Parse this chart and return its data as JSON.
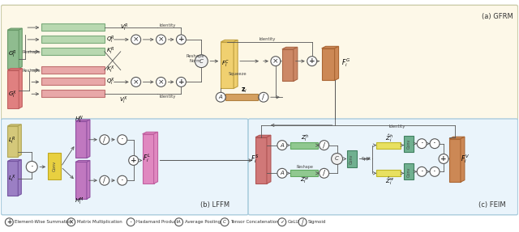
{
  "fig_width": 6.4,
  "fig_height": 2.87,
  "dpi": 100,
  "bg_top": "#fdf8e8",
  "bg_bottom": "#eaf4fb",
  "title_a": "(a) GFRM",
  "title_b": "(b) LFFM",
  "title_c": "(c) FEIM",
  "green_fc": "#b8d8b0",
  "green_ec": "#7aaa7a",
  "green_block_fc": "#8fbc8f",
  "green_block_ec": "#6a9a6a",
  "pink_fc": "#e8a8a8",
  "pink_ec": "#c07070",
  "pink_block_fc": "#e08080",
  "pink_block_ec": "#c06060",
  "yellow_fc": "#f0d070",
  "yellow_ec": "#c0a040",
  "brown_fc": "#cc8866",
  "brown_ec": "#aa6644",
  "orange_fc": "#cc8855",
  "orange_ec": "#aa6633",
  "beige_fc": "#d4c87a",
  "beige_ec": "#b0a555",
  "purple_fc": "#9b7fc4",
  "purple_ec": "#7555a0",
  "magenta_fc": "#c078c0",
  "magenta_ec": "#9050a0",
  "pink_out_fc": "#e088c0",
  "pink_out_ec": "#c060a0",
  "conv_yellow_fc": "#e8d040",
  "conv_yellow_ec": "#c0a820",
  "teal_fc": "#70b090",
  "teal_ec": "#408060",
  "green_bar_fc": "#90c890",
  "green_bar_ec": "#60a860",
  "yellow_bar_fc": "#e8e060",
  "yellow_bar_ec": "#c0b828",
  "salmon_fc": "#d07878",
  "salmon_ec": "#b05555",
  "orange_bar_fc": "#d4a060",
  "orange_bar_ec": "#b08040",
  "circle_ec": "#555555",
  "arrow_color": "#555555",
  "text_color": "#333333",
  "label_color": "#444444"
}
